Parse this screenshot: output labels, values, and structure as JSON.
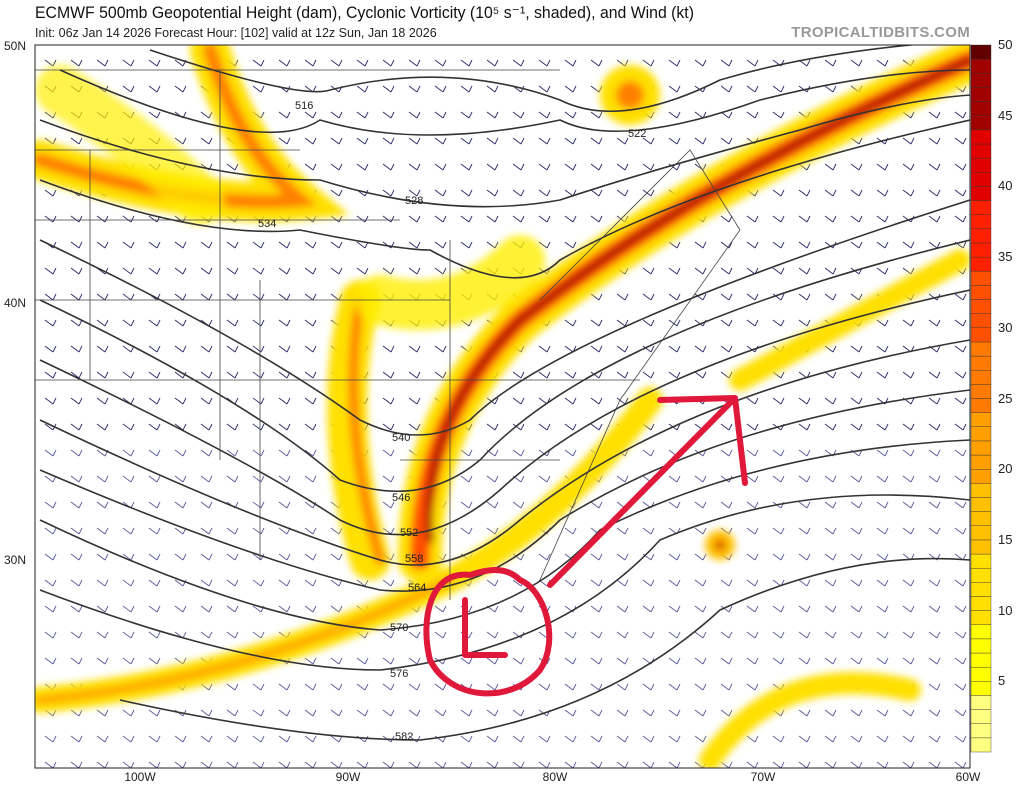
{
  "header": {
    "title": "ECMWF 500mb Geopotential Height (dam), Cyclonic Vorticity (10⁵ s⁻¹, shaded), and Wind (kt)",
    "subtitle": "Init: 06z Jan 14 2026   Forecast Hour: [102]   valid at 12z Sun, Jan 18 2026",
    "brand": "TROPICALTIDBITS.COM"
  },
  "map": {
    "lat_labels": [
      "50N",
      "40N",
      "30N"
    ],
    "lon_labels": [
      "100W",
      "90W",
      "80W",
      "70W",
      "60W"
    ],
    "contour_labels": [
      "516",
      "522",
      "528",
      "534",
      "540",
      "546",
      "552",
      "558",
      "564",
      "570",
      "576",
      "582"
    ]
  },
  "colorbar": {
    "ticks": [
      "50",
      "45",
      "40",
      "35",
      "30",
      "25",
      "20",
      "15",
      "10",
      "5"
    ],
    "colors": [
      "#ffff80",
      "#ffff00",
      "#ffe000",
      "#ffc000",
      "#ffa000",
      "#ff7a00",
      "#ff5000",
      "#ff2000",
      "#e00000",
      "#a00000",
      "#600000"
    ]
  },
  "annotation": {
    "color": "#e0183a",
    "shapes": [
      "circle-with-L",
      "arrow-northeast"
    ]
  }
}
